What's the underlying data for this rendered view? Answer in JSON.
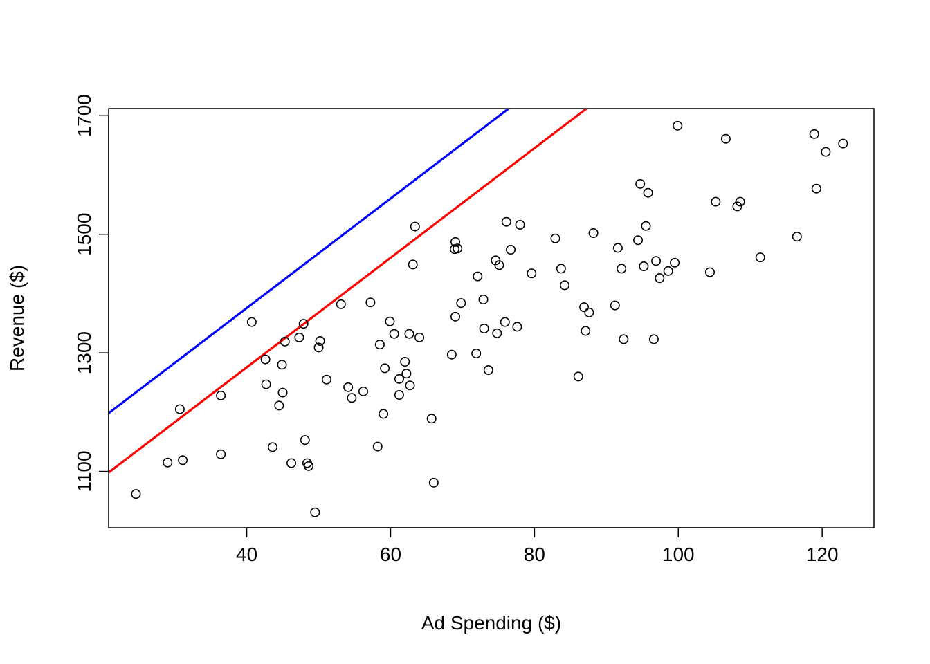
{
  "chart_data": {
    "type": "scatter",
    "title": "",
    "xlabel": "Ad Spending ($)",
    "ylabel": "Revenue ($)",
    "xlim": [
      20.8,
      127.2
    ],
    "ylim": [
      1005,
      1712
    ],
    "xticks": [
      40,
      60,
      80,
      100,
      120
    ],
    "yticks": [
      1100,
      1300,
      1500,
      1700
    ],
    "grid": false,
    "legend": "none",
    "colors": {
      "points": "#000000",
      "line_upper": "#0000ff",
      "line_lower": "#ff0000"
    },
    "points": [
      [
        24.6,
        1062
      ],
      [
        29.0,
        1115
      ],
      [
        30.7,
        1205
      ],
      [
        31.1,
        1119
      ],
      [
        36.4,
        1228
      ],
      [
        36.4,
        1129
      ],
      [
        40.7,
        1352
      ],
      [
        42.6,
        1289
      ],
      [
        42.7,
        1247
      ],
      [
        43.6,
        1141
      ],
      [
        44.5,
        1211
      ],
      [
        44.9,
        1280
      ],
      [
        45.0,
        1233
      ],
      [
        45.3,
        1319
      ],
      [
        46.2,
        1114
      ],
      [
        47.3,
        1326
      ],
      [
        47.9,
        1349
      ],
      [
        48.1,
        1153
      ],
      [
        48.4,
        1114
      ],
      [
        48.6,
        1109
      ],
      [
        49.5,
        1031
      ],
      [
        50.0,
        1309
      ],
      [
        50.2,
        1320
      ],
      [
        51.1,
        1255
      ],
      [
        53.1,
        1382
      ],
      [
        54.1,
        1242
      ],
      [
        54.6,
        1224
      ],
      [
        56.2,
        1235
      ],
      [
        57.2,
        1385
      ],
      [
        58.2,
        1142
      ],
      [
        58.5,
        1314
      ],
      [
        59.0,
        1197
      ],
      [
        59.2,
        1274
      ],
      [
        59.9,
        1353
      ],
      [
        60.5,
        1332
      ],
      [
        61.2,
        1256
      ],
      [
        61.2,
        1229
      ],
      [
        62.0,
        1285
      ],
      [
        62.2,
        1265
      ],
      [
        62.6,
        1332
      ],
      [
        62.7,
        1245
      ],
      [
        63.1,
        1449
      ],
      [
        63.4,
        1513
      ],
      [
        64.0,
        1326
      ],
      [
        65.7,
        1189
      ],
      [
        66.0,
        1081
      ],
      [
        68.5,
        1297
      ],
      [
        68.9,
        1475
      ],
      [
        69.0,
        1487
      ],
      [
        69.0,
        1361
      ],
      [
        69.3,
        1476
      ],
      [
        69.8,
        1384
      ],
      [
        71.9,
        1299
      ],
      [
        72.1,
        1429
      ],
      [
        72.9,
        1390
      ],
      [
        73.0,
        1341
      ],
      [
        73.6,
        1271
      ],
      [
        74.6,
        1456
      ],
      [
        74.8,
        1333
      ],
      [
        75.1,
        1448
      ],
      [
        75.9,
        1352
      ],
      [
        76.1,
        1521
      ],
      [
        76.7,
        1474
      ],
      [
        77.6,
        1344
      ],
      [
        78.0,
        1516
      ],
      [
        79.6,
        1434
      ],
      [
        82.9,
        1493
      ],
      [
        83.7,
        1442
      ],
      [
        84.2,
        1414
      ],
      [
        86.1,
        1260
      ],
      [
        86.9,
        1377
      ],
      [
        87.1,
        1337
      ],
      [
        87.6,
        1368
      ],
      [
        88.2,
        1502
      ],
      [
        91.2,
        1380
      ],
      [
        91.6,
        1477
      ],
      [
        92.1,
        1442
      ],
      [
        92.4,
        1323
      ],
      [
        94.4,
        1490
      ],
      [
        94.7,
        1585
      ],
      [
        95.2,
        1446
      ],
      [
        95.5,
        1514
      ],
      [
        95.8,
        1570
      ],
      [
        96.6,
        1323
      ],
      [
        96.9,
        1455
      ],
      [
        97.4,
        1426
      ],
      [
        98.6,
        1438
      ],
      [
        99.5,
        1452
      ],
      [
        99.9,
        1683
      ],
      [
        104.4,
        1436
      ],
      [
        105.2,
        1555
      ],
      [
        106.6,
        1661
      ],
      [
        108.2,
        1547
      ],
      [
        108.6,
        1555
      ],
      [
        111.4,
        1461
      ],
      [
        116.5,
        1496
      ],
      [
        118.9,
        1669
      ],
      [
        119.2,
        1577
      ],
      [
        120.5,
        1639
      ],
      [
        122.9,
        1653
      ]
    ],
    "lines": [
      {
        "color": "#0000ff",
        "intercept": 1006,
        "slope": 9.24
      },
      {
        "color": "#ff0000",
        "intercept": 906,
        "slope": 9.24
      }
    ]
  }
}
